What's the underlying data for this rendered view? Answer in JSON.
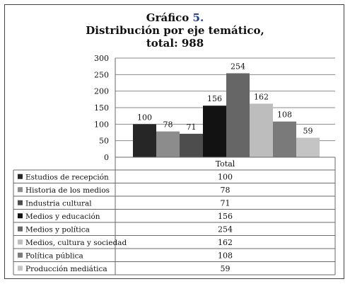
{
  "chart_data": {
    "type": "bar",
    "title_prefix": "Gráfico",
    "title_number": "5.",
    "title_line2": "Distribución por eje temático,",
    "title_line3": "total: 988",
    "categories": [
      "Total"
    ],
    "ylim": [
      0,
      300
    ],
    "yticks": [
      0,
      50,
      100,
      150,
      200,
      250,
      300
    ],
    "grid": true,
    "legend_placement": "table-below",
    "series": [
      {
        "name": "Estudios de recepción",
        "values": [
          100
        ],
        "color": "#262626"
      },
      {
        "name": "Historia de los medios",
        "values": [
          78
        ],
        "color": "#8c8c8c"
      },
      {
        "name": "Industria cultural",
        "values": [
          71
        ],
        "color": "#4d4d4d"
      },
      {
        "name": "Medios y educación",
        "values": [
          156
        ],
        "color": "#121212"
      },
      {
        "name": "Medios y política",
        "values": [
          254
        ],
        "color": "#666666"
      },
      {
        "name": "Medios, cultura y sociedad",
        "values": [
          162
        ],
        "color": "#bdbdbd"
      },
      {
        "name": "Política pública",
        "values": [
          108
        ],
        "color": "#7a7a7a"
      },
      {
        "name": "Producción mediática",
        "values": [
          59
        ],
        "color": "#c4c4c4"
      }
    ]
  }
}
